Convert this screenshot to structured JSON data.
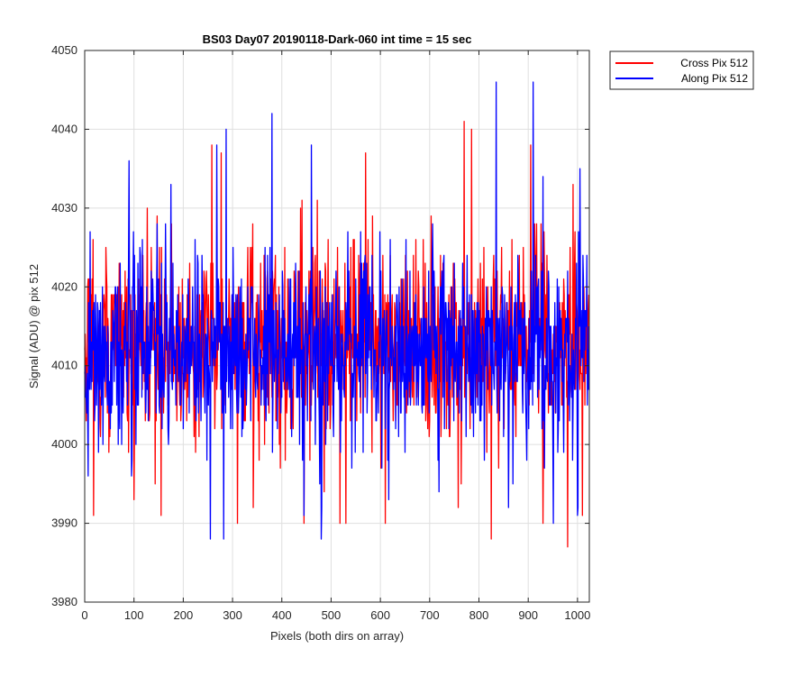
{
  "chart_data": {
    "type": "line",
    "title": "BS03 Day07 20190118-Dark-060 int time = 15 sec",
    "xlabel": "Pixels (both dirs on array)",
    "ylabel": "Signal (ADU) @ pix 512",
    "xlim": [
      0,
      1024
    ],
    "ylim": [
      3980,
      4050
    ],
    "xticks": [
      0,
      100,
      200,
      300,
      400,
      500,
      600,
      700,
      800,
      900,
      1000
    ],
    "yticks": [
      3980,
      3990,
      4000,
      4010,
      4020,
      4030,
      4040,
      4050
    ],
    "grid": true,
    "legend_position": "outside-top-right",
    "n_points": 1024,
    "series": [
      {
        "name": "Cross Pix 512",
        "color": "#ff0000",
        "mean": 4013,
        "min": 3987,
        "max": 4041,
        "peaks": [
          [
            127,
            4030
          ],
          [
            155,
            4036
          ],
          [
            258,
            4038
          ],
          [
            277,
            4037
          ],
          [
            570,
            4037
          ],
          [
            770,
            4041
          ],
          [
            785,
            4040
          ],
          [
            905,
            4038
          ]
        ],
        "troughs": [
          [
            18,
            3991
          ],
          [
            100,
            3993
          ],
          [
            155,
            3991
          ],
          [
            310,
            3990
          ],
          [
            445,
            3990
          ],
          [
            530,
            3990
          ],
          [
            610,
            3990
          ],
          [
            825,
            3988
          ],
          [
            930,
            3990
          ],
          [
            980,
            3987
          ],
          [
            1010,
            3991
          ]
        ]
      },
      {
        "name": "Along Pix 512",
        "color": "#0000ff",
        "mean": 4012,
        "min": 3988,
        "max": 4046,
        "peaks": [
          [
            90,
            4036
          ],
          [
            175,
            4033
          ],
          [
            268,
            4038
          ],
          [
            287,
            4040
          ],
          [
            380,
            4042
          ],
          [
            460,
            4038
          ],
          [
            835,
            4046
          ],
          [
            910,
            4046
          ],
          [
            930,
            4034
          ],
          [
            1005,
            4035
          ]
        ],
        "troughs": [
          [
            7,
            3996
          ],
          [
            255,
            3988
          ],
          [
            282,
            3988
          ],
          [
            445,
            3991
          ],
          [
            480,
            3988
          ],
          [
            860,
            3992
          ],
          [
            1000,
            3991
          ]
        ]
      }
    ]
  }
}
